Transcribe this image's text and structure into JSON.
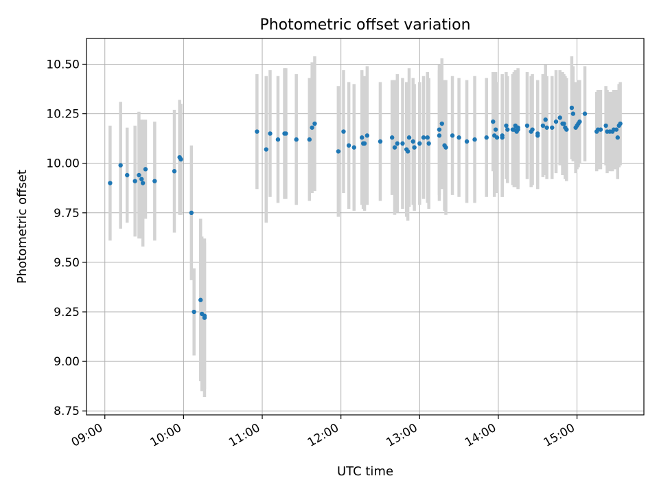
{
  "chart_data": {
    "type": "scatter",
    "title": "Photometric offset variation",
    "xlabel": "UTC time",
    "ylabel": "Photometric offset",
    "x_axis_kind": "time",
    "xlim": [
      "08:46",
      "15:51"
    ],
    "ylim": [
      8.73,
      10.63
    ],
    "xticks": [
      "09:00",
      "10:00",
      "11:00",
      "12:00",
      "13:00",
      "14:00",
      "15:00"
    ],
    "yticks": [
      8.75,
      9.0,
      9.25,
      9.5,
      9.75,
      10.0,
      10.25,
      10.5
    ],
    "ytick_labels": [
      "8.75",
      "9.00",
      "9.25",
      "9.50",
      "9.75",
      "10.00",
      "10.25",
      "10.50"
    ],
    "grid": true,
    "legend": false,
    "colors": {
      "points": "#1f77b4",
      "error_bars": "#d3d3d3",
      "grid": "#b0b0b0"
    },
    "points": [
      {
        "x": "09:04",
        "y": 9.9,
        "yerr": 0.29
      },
      {
        "x": "09:12",
        "y": 9.99,
        "yerr": 0.32
      },
      {
        "x": "09:17",
        "y": 9.94,
        "yerr": 0.24
      },
      {
        "x": "09:23",
        "y": 9.91,
        "yerr": 0.28
      },
      {
        "x": "09:26",
        "y": 9.94,
        "yerr": 0.32
      },
      {
        "x": "09:28",
        "y": 9.92,
        "yerr": 0.3
      },
      {
        "x": "09:29",
        "y": 9.9,
        "yerr": 0.32
      },
      {
        "x": "09:31",
        "y": 9.97,
        "yerr": 0.25
      },
      {
        "x": "09:38",
        "y": 9.91,
        "yerr": 0.3
      },
      {
        "x": "09:53",
        "y": 9.96,
        "yerr": 0.31
      },
      {
        "x": "09:57",
        "y": 10.03,
        "yerr": 0.29
      },
      {
        "x": "09:58",
        "y": 10.02,
        "yerr": 0.28
      },
      {
        "x": "10:06",
        "y": 9.75,
        "yerr": 0.34
      },
      {
        "x": "10:08",
        "y": 9.25,
        "yerr": 0.22
      },
      {
        "x": "10:13",
        "y": 9.31,
        "yerr": 0.41
      },
      {
        "x": "10:14",
        "y": 9.24,
        "yerr": 0.39
      },
      {
        "x": "10:16",
        "y": 9.22,
        "yerr": 0.4
      },
      {
        "x": "10:16",
        "y": 9.23,
        "yerr": 0.37
      },
      {
        "x": "10:56",
        "y": 10.16,
        "yerr": 0.29
      },
      {
        "x": "11:03",
        "y": 10.07,
        "yerr": 0.37
      },
      {
        "x": "11:06",
        "y": 10.15,
        "yerr": 0.32
      },
      {
        "x": "11:12",
        "y": 10.12,
        "yerr": 0.32
      },
      {
        "x": "11:17",
        "y": 10.15,
        "yerr": 0.33
      },
      {
        "x": "11:18",
        "y": 10.15,
        "yerr": 0.33
      },
      {
        "x": "11:26",
        "y": 10.12,
        "yerr": 0.33
      },
      {
        "x": "11:36",
        "y": 10.12,
        "yerr": 0.31
      },
      {
        "x": "11:38",
        "y": 10.18,
        "yerr": 0.33
      },
      {
        "x": "11:40",
        "y": 10.2,
        "yerr": 0.34
      },
      {
        "x": "11:58",
        "y": 10.06,
        "yerr": 0.33
      },
      {
        "x": "12:02",
        "y": 10.16,
        "yerr": 0.31
      },
      {
        "x": "12:06",
        "y": 10.09,
        "yerr": 0.32
      },
      {
        "x": "12:10",
        "y": 10.08,
        "yerr": 0.32
      },
      {
        "x": "12:16",
        "y": 10.13,
        "yerr": 0.34
      },
      {
        "x": "12:17",
        "y": 10.1,
        "yerr": 0.33
      },
      {
        "x": "12:18",
        "y": 10.1,
        "yerr": 0.34
      },
      {
        "x": "12:20",
        "y": 10.14,
        "yerr": 0.35
      },
      {
        "x": "12:30",
        "y": 10.11,
        "yerr": 0.3
      },
      {
        "x": "12:39",
        "y": 10.13,
        "yerr": 0.29
      },
      {
        "x": "12:41",
        "y": 10.08,
        "yerr": 0.34
      },
      {
        "x": "12:43",
        "y": 10.1,
        "yerr": 0.35
      },
      {
        "x": "12:47",
        "y": 10.1,
        "yerr": 0.33
      },
      {
        "x": "12:50",
        "y": 10.07,
        "yerr": 0.34
      },
      {
        "x": "12:51",
        "y": 10.06,
        "yerr": 0.35
      },
      {
        "x": "12:52",
        "y": 10.13,
        "yerr": 0.35
      },
      {
        "x": "12:55",
        "y": 10.11,
        "yerr": 0.32
      },
      {
        "x": "12:56",
        "y": 10.08,
        "yerr": 0.32
      },
      {
        "x": "13:00",
        "y": 10.1,
        "yerr": 0.31
      },
      {
        "x": "13:03",
        "y": 10.13,
        "yerr": 0.31
      },
      {
        "x": "13:06",
        "y": 10.13,
        "yerr": 0.33
      },
      {
        "x": "13:07",
        "y": 10.1,
        "yerr": 0.33
      },
      {
        "x": "13:15",
        "y": 10.17,
        "yerr": 0.33
      },
      {
        "x": "13:15",
        "y": 10.14,
        "yerr": 0.33
      },
      {
        "x": "13:17",
        "y": 10.2,
        "yerr": 0.33
      },
      {
        "x": "13:19",
        "y": 10.09,
        "yerr": 0.33
      },
      {
        "x": "13:20",
        "y": 10.08,
        "yerr": 0.34
      },
      {
        "x": "13:25",
        "y": 10.14,
        "yerr": 0.3
      },
      {
        "x": "13:30",
        "y": 10.13,
        "yerr": 0.3
      },
      {
        "x": "13:36",
        "y": 10.11,
        "yerr": 0.31
      },
      {
        "x": "13:42",
        "y": 10.12,
        "yerr": 0.32
      },
      {
        "x": "13:51",
        "y": 10.13,
        "yerr": 0.3
      },
      {
        "x": "13:56",
        "y": 10.21,
        "yerr": 0.25
      },
      {
        "x": "13:57",
        "y": 10.14,
        "yerr": 0.31
      },
      {
        "x": "13:58",
        "y": 10.17,
        "yerr": 0.29
      },
      {
        "x": "13:59",
        "y": 10.13,
        "yerr": 0.28
      },
      {
        "x": "14:03",
        "y": 10.14,
        "yerr": 0.31
      },
      {
        "x": "14:03",
        "y": 10.13,
        "yerr": 0.3
      },
      {
        "x": "14:06",
        "y": 10.19,
        "yerr": 0.27
      },
      {
        "x": "14:07",
        "y": 10.17,
        "yerr": 0.27
      },
      {
        "x": "14:11",
        "y": 10.17,
        "yerr": 0.28
      },
      {
        "x": "14:12",
        "y": 10.17,
        "yerr": 0.29
      },
      {
        "x": "14:13",
        "y": 10.19,
        "yerr": 0.28
      },
      {
        "x": "14:14",
        "y": 10.16,
        "yerr": 0.28
      },
      {
        "x": "14:15",
        "y": 10.18,
        "yerr": 0.3
      },
      {
        "x": "14:15",
        "y": 10.17,
        "yerr": 0.3
      },
      {
        "x": "14:22",
        "y": 10.19,
        "yerr": 0.27
      },
      {
        "x": "14:25",
        "y": 10.16,
        "yerr": 0.28
      },
      {
        "x": "14:26",
        "y": 10.17,
        "yerr": 0.28
      },
      {
        "x": "14:30",
        "y": 10.15,
        "yerr": 0.27
      },
      {
        "x": "14:30",
        "y": 10.14,
        "yerr": 0.27
      },
      {
        "x": "14:34",
        "y": 10.19,
        "yerr": 0.26
      },
      {
        "x": "14:36",
        "y": 10.22,
        "yerr": 0.28
      },
      {
        "x": "14:37",
        "y": 10.18,
        "yerr": 0.26
      },
      {
        "x": "14:41",
        "y": 10.18,
        "yerr": 0.26
      },
      {
        "x": "14:44",
        "y": 10.21,
        "yerr": 0.26
      },
      {
        "x": "14:47",
        "y": 10.23,
        "yerr": 0.24
      },
      {
        "x": "14:49",
        "y": 10.2,
        "yerr": 0.26
      },
      {
        "x": "14:50",
        "y": 10.2,
        "yerr": 0.25
      },
      {
        "x": "14:51",
        "y": 10.18,
        "yerr": 0.26
      },
      {
        "x": "14:52",
        "y": 10.17,
        "yerr": 0.26
      },
      {
        "x": "14:56",
        "y": 10.28,
        "yerr": 0.26
      },
      {
        "x": "14:57",
        "y": 10.25,
        "yerr": 0.24
      },
      {
        "x": "14:59",
        "y": 10.18,
        "yerr": 0.23
      },
      {
        "x": "15:00",
        "y": 10.19,
        "yerr": 0.22
      },
      {
        "x": "15:01",
        "y": 10.2,
        "yerr": 0.22
      },
      {
        "x": "15:02",
        "y": 10.21,
        "yerr": 0.21
      },
      {
        "x": "15:06",
        "y": 10.25,
        "yerr": 0.24
      },
      {
        "x": "15:15",
        "y": 10.16,
        "yerr": 0.2
      },
      {
        "x": "15:16",
        "y": 10.17,
        "yerr": 0.2
      },
      {
        "x": "15:18",
        "y": 10.17,
        "yerr": 0.2
      },
      {
        "x": "15:22",
        "y": 10.19,
        "yerr": 0.2
      },
      {
        "x": "15:23",
        "y": 10.16,
        "yerr": 0.21
      },
      {
        "x": "15:25",
        "y": 10.16,
        "yerr": 0.2
      },
      {
        "x": "15:27",
        "y": 10.16,
        "yerr": 0.2
      },
      {
        "x": "15:28",
        "y": 10.17,
        "yerr": 0.2
      },
      {
        "x": "15:30",
        "y": 10.17,
        "yerr": 0.2
      },
      {
        "x": "15:31",
        "y": 10.13,
        "yerr": 0.21
      },
      {
        "x": "15:32",
        "y": 10.19,
        "yerr": 0.21
      },
      {
        "x": "15:33",
        "y": 10.2,
        "yerr": 0.21
      }
    ]
  }
}
